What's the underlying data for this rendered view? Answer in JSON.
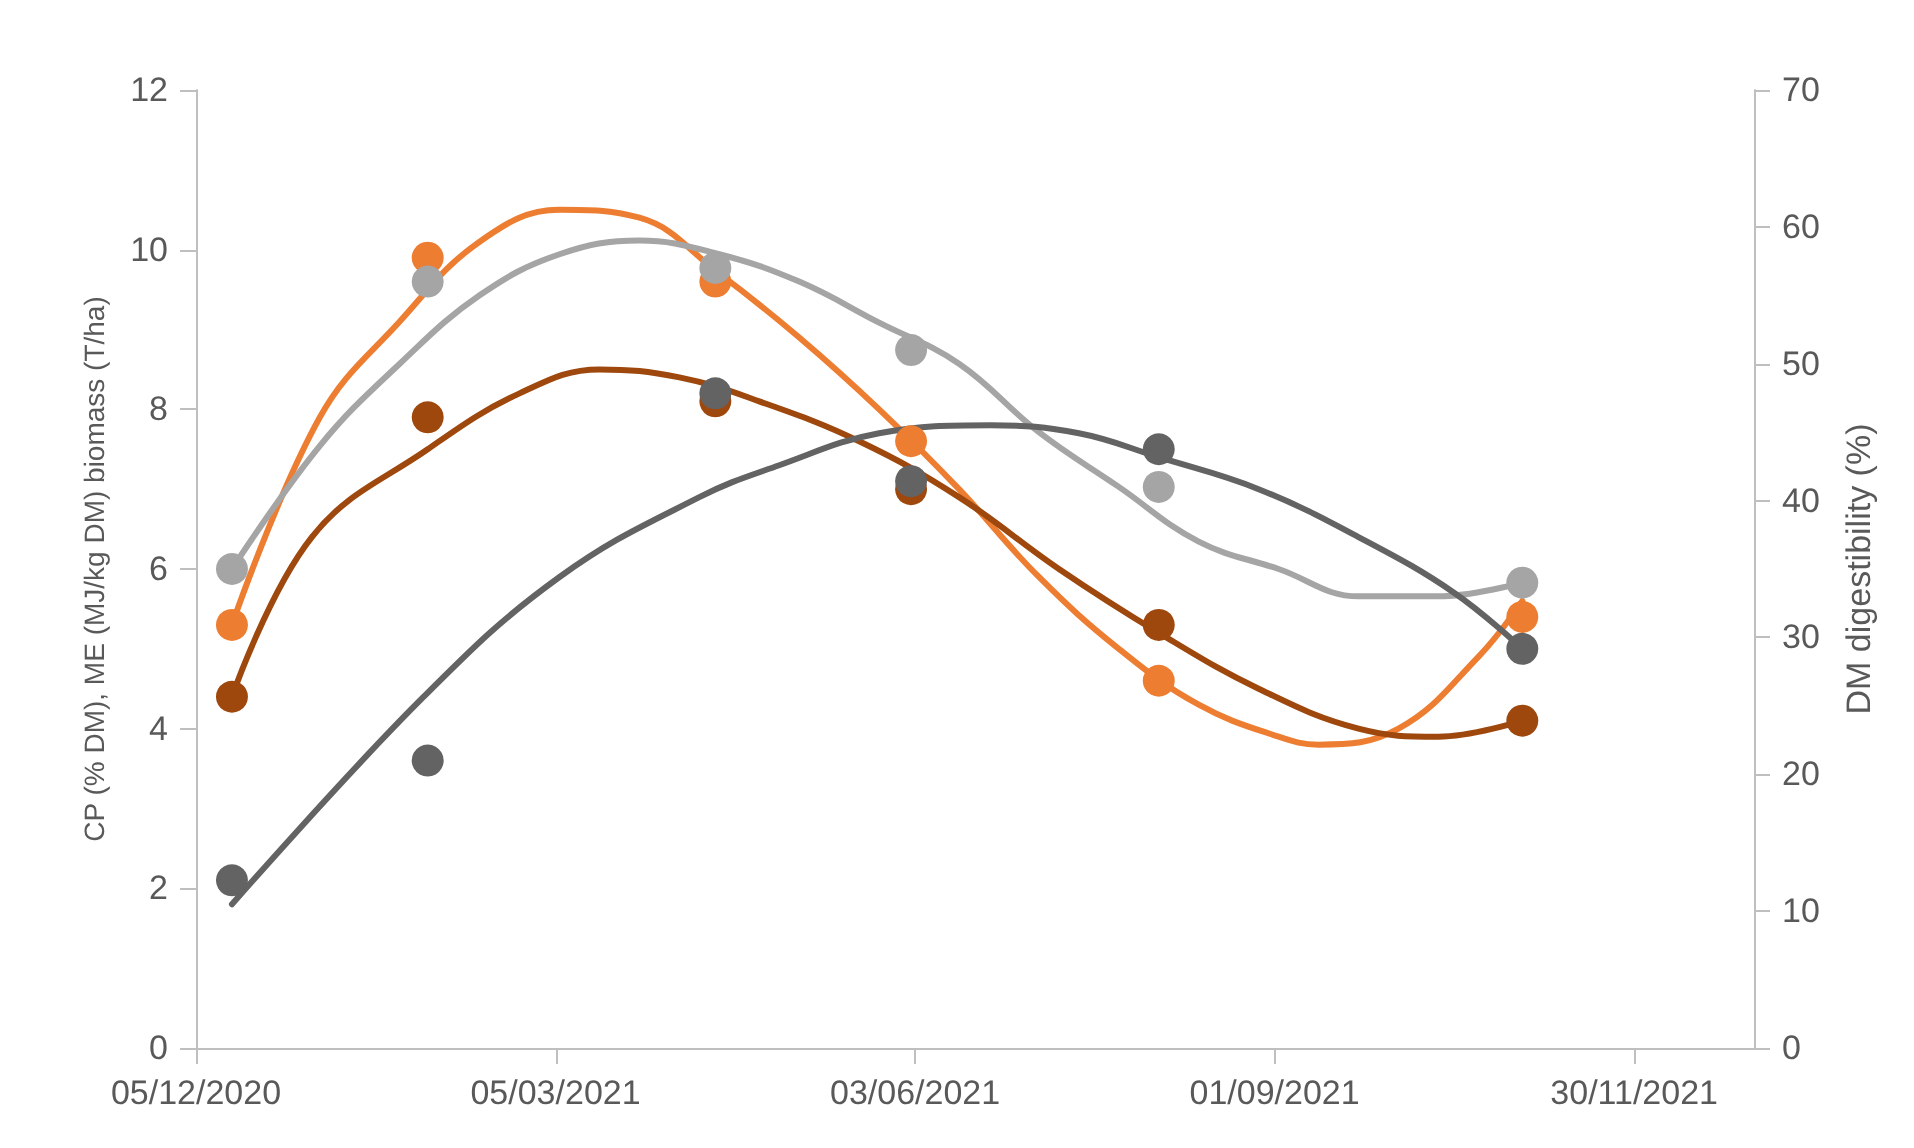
{
  "chart_data": {
    "type": "scatter",
    "ylabel": "CP (% DM), ME (MJ/kg DM) biomass (T/ha)",
    "y2label": "DM digestibility (%)",
    "x": [
      "2020-12-14",
      "2021-02-01",
      "2021-04-14",
      "2021-06-02",
      "2021-08-03",
      "2021-11-02"
    ],
    "xlim": [
      "2020-12-05",
      "2021-12-30"
    ],
    "xticks": [
      {
        "value": "2020-12-05",
        "label": "05/12/2020"
      },
      {
        "value": "2021-03-05",
        "label": "05/03/2021"
      },
      {
        "value": "2021-06-03",
        "label": "03/06/2021"
      },
      {
        "value": "2021-09-01",
        "label": "01/09/2021"
      },
      {
        "value": "2021-11-30",
        "label": "30/11/2021"
      }
    ],
    "ylim": [
      0,
      12
    ],
    "yticks": [
      0,
      2,
      4,
      6,
      8,
      10,
      12
    ],
    "y2lim": [
      0,
      70
    ],
    "y2ticks": [
      0,
      10,
      20,
      30,
      40,
      50,
      60,
      70
    ],
    "grid": false,
    "marker": "circle",
    "line_style": "solid",
    "series": [
      {
        "color": "#ed7d31",
        "values": [
          5.3,
          9.9,
          9.6,
          7.6,
          4.6,
          5.4
        ]
      },
      {
        "color": "#a5a5a5",
        "axis": "y2",
        "values": [
          35,
          56,
          57,
          51,
          41,
          34
        ]
      },
      {
        "color": "#9e480e",
        "values": [
          4.4,
          7.9,
          8.1,
          7.0,
          5.3,
          4.1
        ]
      },
      {
        "color": "#636363",
        "values": [
          2.1,
          3.6,
          8.2,
          7.1,
          7.5,
          5.0
        ]
      },
      {
        "type": "line",
        "marker": "none",
        "color": "#ed7d31",
        "x": [
          "2020-12-14",
          "2021-01-05",
          "2021-01-25",
          "2021-02-14",
          "2021-03-06",
          "2021-03-26",
          "2021-04-15",
          "2021-05-05",
          "2021-05-25",
          "2021-06-14",
          "2021-07-04",
          "2021-07-24",
          "2021-08-13",
          "2021-09-02",
          "2021-09-12",
          "2021-10-02",
          "2021-10-22",
          "2021-11-02"
        ],
        "values": [
          5.3,
          7.9,
          9.1,
          10.1,
          10.5,
          10.4,
          9.7,
          8.9,
          8.0,
          7.0,
          5.9,
          5.0,
          4.3,
          3.9,
          3.8,
          4.0,
          4.9,
          5.6
        ]
      },
      {
        "type": "line",
        "marker": "none",
        "color": "#a5a5a5",
        "axis": "y2",
        "x": [
          "2020-12-14",
          "2021-01-05",
          "2021-01-25",
          "2021-02-14",
          "2021-03-06",
          "2021-03-26",
          "2021-04-15",
          "2021-05-05",
          "2021-05-25",
          "2021-06-14",
          "2021-07-04",
          "2021-07-24",
          "2021-08-13",
          "2021-09-02",
          "2021-09-22",
          "2021-10-12",
          "2021-11-02"
        ],
        "values": [
          35,
          44,
          50,
          55,
          58,
          59,
          58,
          56,
          53,
          50,
          45,
          41,
          37,
          35,
          33,
          33,
          34
        ]
      },
      {
        "type": "line",
        "marker": "none",
        "color": "#9e480e",
        "x": [
          "2020-12-14",
          "2021-01-03",
          "2021-02-01",
          "2021-02-24",
          "2021-03-16",
          "2021-04-05",
          "2021-04-25",
          "2021-05-20",
          "2021-06-14",
          "2021-07-09",
          "2021-08-03",
          "2021-08-28",
          "2021-09-22",
          "2021-10-12",
          "2021-11-02"
        ],
        "values": [
          4.4,
          6.4,
          7.5,
          8.2,
          8.5,
          8.4,
          8.1,
          7.6,
          6.9,
          6.0,
          5.2,
          4.5,
          4.0,
          3.9,
          4.1
        ]
      },
      {
        "type": "line",
        "marker": "none",
        "color": "#636363",
        "x": [
          "2020-12-14",
          "2021-01-31",
          "2021-03-06",
          "2021-04-10",
          "2021-04-30",
          "2021-05-25",
          "2021-06-22",
          "2021-07-14",
          "2021-08-03",
          "2021-08-28",
          "2021-09-22",
          "2021-10-16",
          "2021-11-02"
        ],
        "values": [
          1.8,
          4.4,
          5.9,
          6.9,
          7.3,
          7.7,
          7.8,
          7.7,
          7.4,
          7.0,
          6.4,
          5.7,
          5.0
        ]
      }
    ]
  }
}
